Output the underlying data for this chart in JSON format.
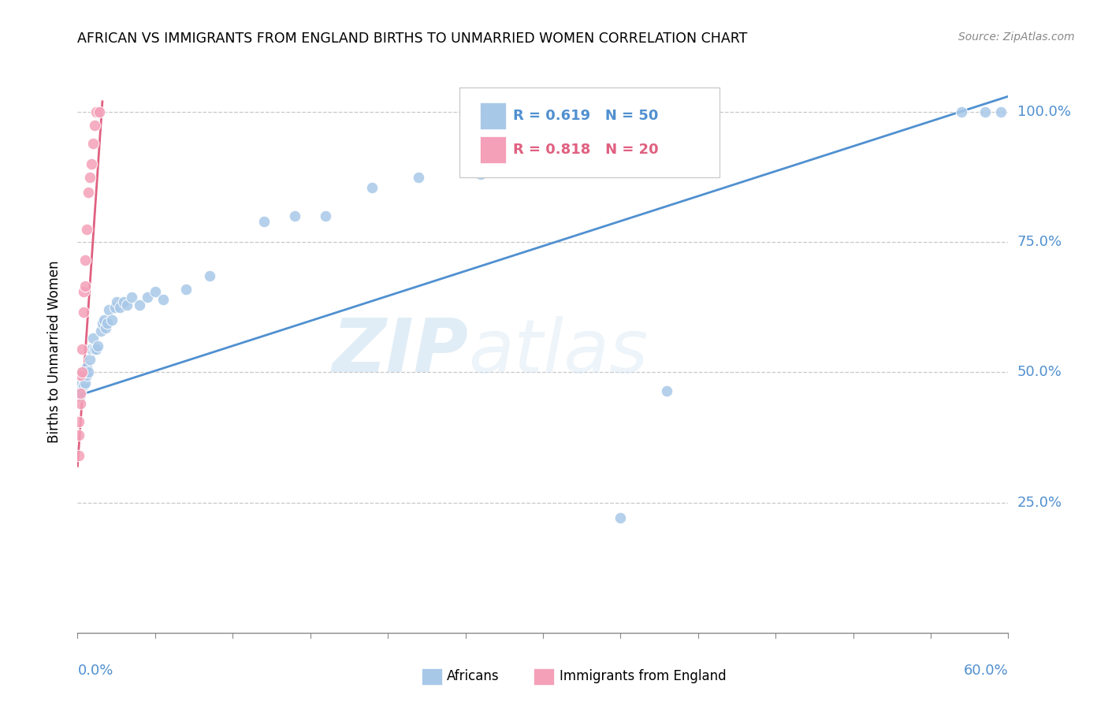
{
  "title": "AFRICAN VS IMMIGRANTS FROM ENGLAND BIRTHS TO UNMARRIED WOMEN CORRELATION CHART",
  "source": "Source: ZipAtlas.com",
  "ylabel": "Births to Unmarried Women",
  "ytick_labels": [
    "100.0%",
    "75.0%",
    "50.0%",
    "25.0%"
  ],
  "ytick_values": [
    1.0,
    0.75,
    0.5,
    0.25
  ],
  "xlim": [
    0.0,
    0.6
  ],
  "ylim": [
    0.0,
    1.08
  ],
  "legend_blue_r": "R = 0.619",
  "legend_blue_n": "N = 50",
  "legend_pink_r": "R = 0.818",
  "legend_pink_n": "N = 20",
  "blue_color": "#a8c8e8",
  "pink_color": "#f4a0b8",
  "blue_line_color": "#5090d0",
  "pink_line_color": "#e06080",
  "watermark_zip": "ZIP",
  "watermark_atlas": "atlas",
  "africans_x": [
    0.001,
    0.001,
    0.002,
    0.002,
    0.003,
    0.003,
    0.004,
    0.004,
    0.005,
    0.005,
    0.006,
    0.006,
    0.007,
    0.008,
    0.009,
    0.01,
    0.011,
    0.012,
    0.013,
    0.015,
    0.016,
    0.017,
    0.018,
    0.019,
    0.02,
    0.022,
    0.024,
    0.025,
    0.027,
    0.03,
    0.032,
    0.035,
    0.04,
    0.045,
    0.05,
    0.055,
    0.07,
    0.085,
    0.12,
    0.14,
    0.16,
    0.19,
    0.22,
    0.26,
    0.3,
    0.35,
    0.38,
    0.57,
    0.585,
    0.595
  ],
  "africans_y": [
    0.455,
    0.47,
    0.455,
    0.46,
    0.48,
    0.5,
    0.475,
    0.49,
    0.48,
    0.5,
    0.495,
    0.51,
    0.5,
    0.525,
    0.545,
    0.565,
    0.545,
    0.545,
    0.55,
    0.58,
    0.595,
    0.6,
    0.585,
    0.595,
    0.62,
    0.6,
    0.625,
    0.635,
    0.625,
    0.635,
    0.63,
    0.645,
    0.63,
    0.645,
    0.655,
    0.64,
    0.66,
    0.685,
    0.79,
    0.8,
    0.8,
    0.855,
    0.875,
    0.88,
    0.885,
    0.22,
    0.465,
    1.0,
    1.0,
    1.0
  ],
  "immigrants_x": [
    0.001,
    0.001,
    0.001,
    0.002,
    0.002,
    0.002,
    0.003,
    0.003,
    0.004,
    0.004,
    0.005,
    0.005,
    0.006,
    0.007,
    0.008,
    0.009,
    0.01,
    0.011,
    0.012,
    0.014
  ],
  "immigrants_y": [
    0.34,
    0.38,
    0.405,
    0.44,
    0.46,
    0.495,
    0.5,
    0.545,
    0.615,
    0.655,
    0.665,
    0.715,
    0.775,
    0.845,
    0.875,
    0.9,
    0.94,
    0.975,
    1.0,
    1.0
  ],
  "blue_line_x": [
    0.0,
    0.6
  ],
  "blue_line_y": [
    0.455,
    1.03
  ],
  "pink_line_x": [
    0.0,
    0.016
  ],
  "pink_line_y": [
    0.32,
    1.02
  ]
}
